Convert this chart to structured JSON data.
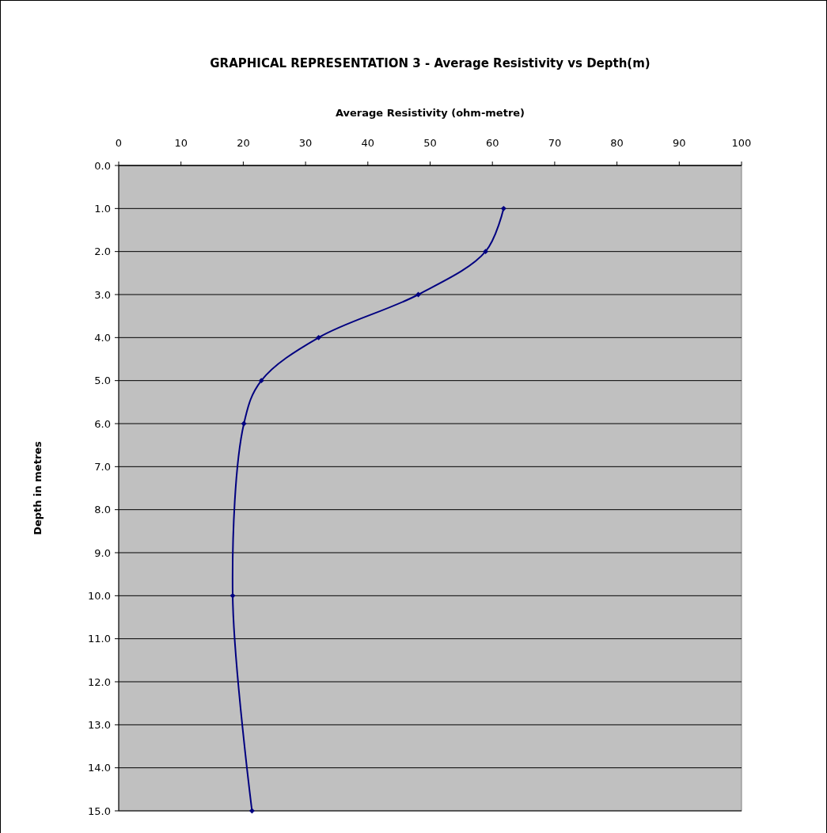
{
  "chart_data": {
    "type": "line",
    "title": "GRAPHICAL REPRESENTATION 3 - Average Resistivity vs Depth(m)",
    "xlabel": "Average Resistivity (ohm-metre)",
    "ylabel": "Depth in metres",
    "xlim": [
      0,
      100
    ],
    "xticks": [
      0,
      10,
      20,
      30,
      40,
      50,
      60,
      70,
      80,
      90,
      100
    ],
    "ylim": [
      15,
      0
    ],
    "yticks": [
      {
        "value": 0,
        "label": "0.0"
      },
      {
        "value": 1,
        "label": "1.0"
      },
      {
        "value": 2,
        "label": "2.0"
      },
      {
        "value": 3,
        "label": "3.0"
      },
      {
        "value": 4,
        "label": "4.0"
      },
      {
        "value": 5,
        "label": "5.0"
      },
      {
        "value": 6,
        "label": "6.0"
      },
      {
        "value": 7,
        "label": "7.0"
      },
      {
        "value": 8,
        "label": "8.0"
      },
      {
        "value": 9,
        "label": "9.0"
      },
      {
        "value": 10,
        "label": "10.0"
      },
      {
        "value": 11,
        "label": "11.0"
      },
      {
        "value": 12,
        "label": "12.0"
      },
      {
        "value": 13,
        "label": "13.0"
      },
      {
        "value": 14,
        "label": "14.0"
      },
      {
        "value": 15,
        "label": "15.0"
      }
    ],
    "grid": "y",
    "marker": "diamond",
    "line_style": "solid",
    "series": [
      {
        "color": "#000080",
        "x": [
          61.8,
          58.9,
          48.1,
          32.1,
          22.9,
          20.1,
          18.3,
          21.4
        ],
        "values": [
          1,
          2,
          3,
          4,
          5,
          6,
          10,
          15
        ]
      }
    ]
  }
}
